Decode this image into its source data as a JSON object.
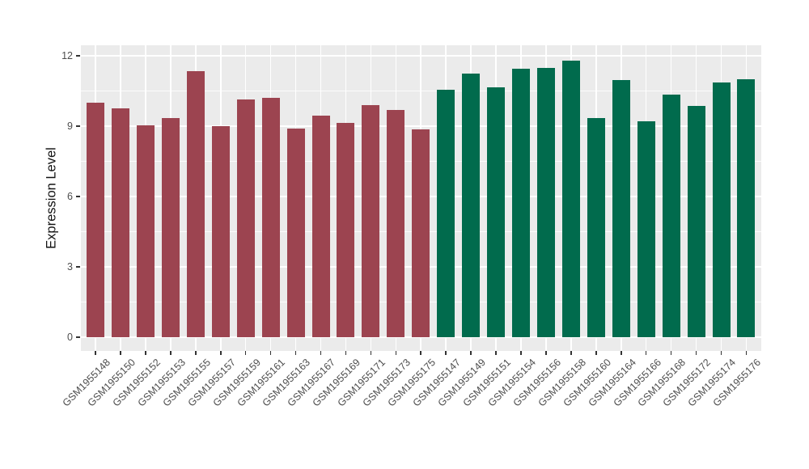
{
  "figure": {
    "background": "#FFFFFF",
    "panel_background": "#EBEBEB",
    "grid_color": "#FFFFFF",
    "tick_color": "#333333",
    "tick_label_color": "#4D4D4D",
    "axis_title_color": "#111111"
  },
  "chart_data": {
    "type": "bar",
    "title": "",
    "xlabel": "",
    "ylabel": "Expression Level",
    "ylim": [
      0,
      12.4
    ],
    "yticks": [
      0,
      3,
      6,
      9,
      12
    ],
    "grid": true,
    "legend_position": "none",
    "group_colors": {
      "group1": "#9C4450",
      "group2": "#016B4D"
    },
    "bars": [
      {
        "label": "GSM1955148",
        "value": 10.0,
        "group": "group1"
      },
      {
        "label": "GSM1955150",
        "value": 9.75,
        "group": "group1"
      },
      {
        "label": "GSM1955152",
        "value": 9.05,
        "group": "group1"
      },
      {
        "label": "GSM1955153",
        "value": 9.35,
        "group": "group1"
      },
      {
        "label": "GSM1955155",
        "value": 11.35,
        "group": "group1"
      },
      {
        "label": "GSM1955157",
        "value": 9.0,
        "group": "group1"
      },
      {
        "label": "GSM1955159",
        "value": 10.15,
        "group": "group1"
      },
      {
        "label": "GSM1955161",
        "value": 10.2,
        "group": "group1"
      },
      {
        "label": "GSM1955163",
        "value": 8.9,
        "group": "group1"
      },
      {
        "label": "GSM1955167",
        "value": 9.45,
        "group": "group1"
      },
      {
        "label": "GSM1955169",
        "value": 9.15,
        "group": "group1"
      },
      {
        "label": "GSM1955171",
        "value": 9.9,
        "group": "group1"
      },
      {
        "label": "GSM1955173",
        "value": 9.7,
        "group": "group1"
      },
      {
        "label": "GSM1955175",
        "value": 8.85,
        "group": "group1"
      },
      {
        "label": "GSM1955147",
        "value": 10.55,
        "group": "group2"
      },
      {
        "label": "GSM1955149",
        "value": 11.25,
        "group": "group2"
      },
      {
        "label": "GSM1955151",
        "value": 10.65,
        "group": "group2"
      },
      {
        "label": "GSM1955154",
        "value": 11.45,
        "group": "group2"
      },
      {
        "label": "GSM1955156",
        "value": 11.5,
        "group": "group2"
      },
      {
        "label": "GSM1955158",
        "value": 11.8,
        "group": "group2"
      },
      {
        "label": "GSM1955160",
        "value": 9.35,
        "group": "group2"
      },
      {
        "label": "GSM1955164",
        "value": 10.95,
        "group": "group2"
      },
      {
        "label": "GSM1955166",
        "value": 9.2,
        "group": "group2"
      },
      {
        "label": "GSM1955168",
        "value": 10.35,
        "group": "group2"
      },
      {
        "label": "GSM1955172",
        "value": 9.85,
        "group": "group2"
      },
      {
        "label": "GSM1955174",
        "value": 10.85,
        "group": "group2"
      },
      {
        "label": "GSM1955176",
        "value": 11.0,
        "group": "group2"
      }
    ]
  }
}
